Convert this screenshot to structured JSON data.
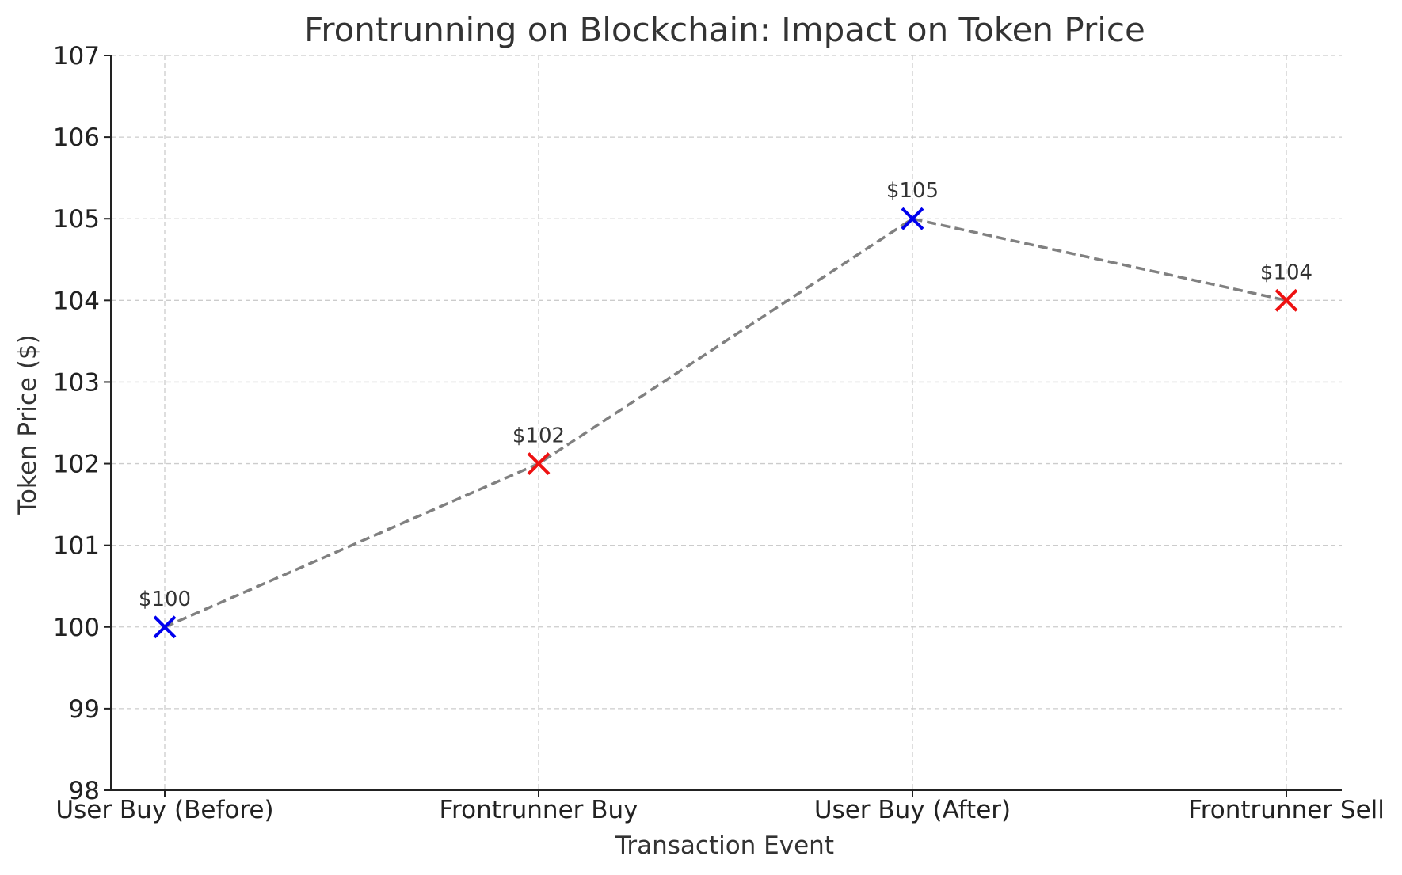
{
  "chart_data": {
    "type": "line",
    "title": "Frontrunning on Blockchain: Impact on Token Price",
    "xlabel": "Transaction Event",
    "ylabel": "Token Price ($)",
    "categories": [
      "User Buy (Before)",
      "Frontrunner Buy",
      "User Buy (After)",
      "Frontrunner Sell"
    ],
    "series": [
      {
        "values": [
          100,
          102,
          105,
          104
        ],
        "line_color": "#808080",
        "line_style": "dashed",
        "marker": "x",
        "marker_colors": [
          "#0000ee",
          "#ee1111",
          "#0000ee",
          "#ee1111"
        ],
        "data_labels": [
          "$100",
          "$102",
          "$105",
          "$104"
        ]
      }
    ],
    "ylim": [
      98,
      107
    ],
    "yticks": [
      "98",
      "99",
      "100",
      "101",
      "102",
      "103",
      "104",
      "105",
      "106",
      "107"
    ],
    "grid": true
  }
}
